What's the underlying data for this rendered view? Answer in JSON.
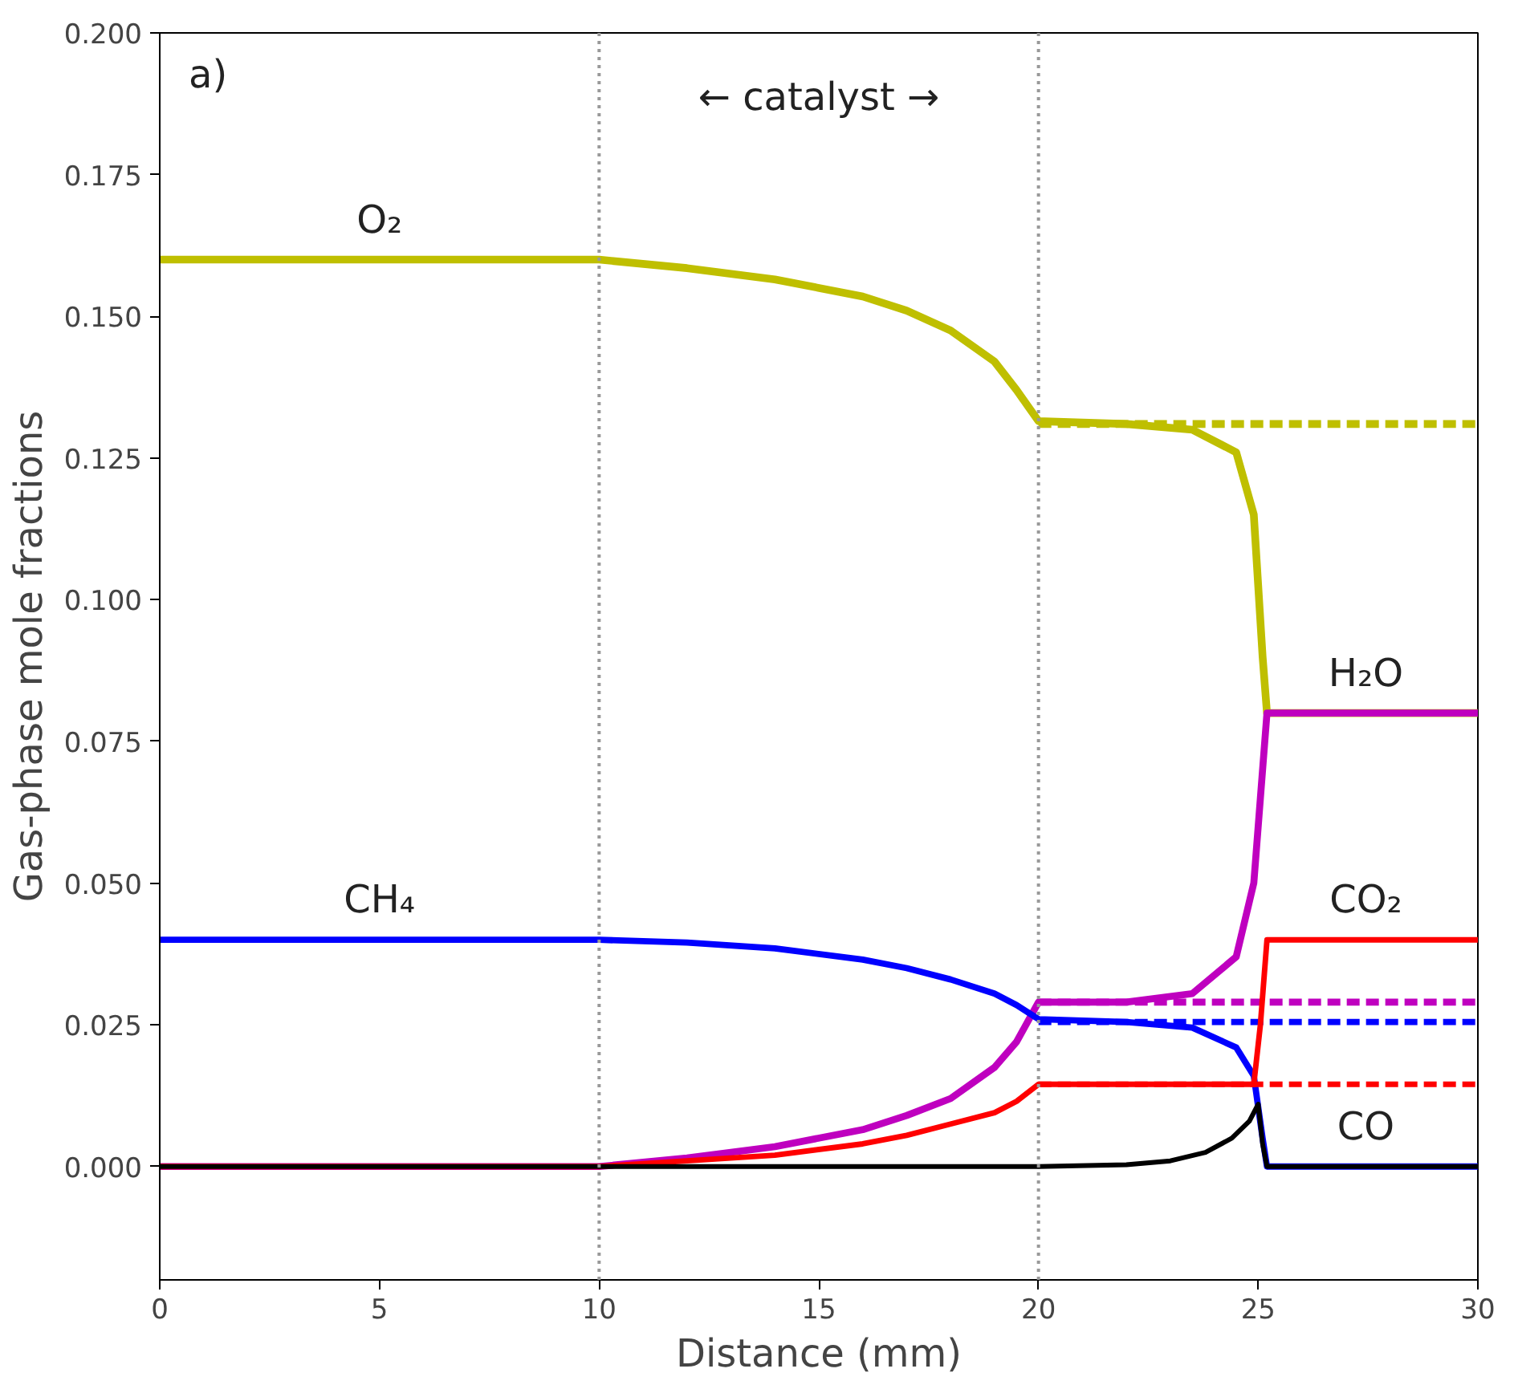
{
  "chart_data": {
    "type": "line",
    "xlabel": "Distance (mm)",
    "ylabel": "Gas-phase mole fractions",
    "xlim": [
      0,
      30
    ],
    "xticks": [
      0,
      5,
      10,
      15,
      20,
      25,
      30
    ],
    "ylim": [
      -0.02,
      0.2
    ],
    "yticks": [
      {
        "value": 0,
        "label": "0.000"
      },
      {
        "value": 0.025,
        "label": "0.025"
      },
      {
        "value": 0.05,
        "label": "0.050"
      },
      {
        "value": 0.075,
        "label": "0.075"
      },
      {
        "value": 0.1,
        "label": "0.100"
      },
      {
        "value": 0.125,
        "label": "0.125"
      },
      {
        "value": 0.15,
        "label": "0.150"
      },
      {
        "value": 0.175,
        "label": "0.175"
      },
      {
        "value": 0.2,
        "label": "0.200"
      }
    ],
    "grid": false,
    "legend": false,
    "marker": "none",
    "series": [
      {
        "name": "O₂",
        "color": "#bfbf00",
        "line_style": "solid",
        "x": [
          0,
          10,
          12,
          14,
          16,
          17,
          18,
          19,
          19.5,
          20,
          22,
          23.5,
          24.5,
          24.9,
          25.1,
          25.2,
          30
        ],
        "values": [
          0.16,
          0.16,
          0.1585,
          0.1565,
          0.1535,
          0.151,
          0.1475,
          0.142,
          0.137,
          0.1315,
          0.131,
          0.13,
          0.126,
          0.115,
          0.09,
          0.08,
          0.08
        ]
      },
      {
        "color": "#bfbf00",
        "line_style": "dashed",
        "x": [
          20,
          30
        ],
        "values": [
          0.131,
          0.131
        ]
      },
      {
        "name": "H₂O",
        "color": "#bf00bf",
        "line_style": "solid",
        "x": [
          0,
          10,
          12,
          14,
          16,
          17,
          18,
          19,
          19.5,
          20,
          22,
          23.5,
          24.5,
          24.9,
          25.05,
          25.2,
          30
        ],
        "values": [
          0,
          0,
          0.0015,
          0.0035,
          0.0065,
          0.009,
          0.012,
          0.0175,
          0.022,
          0.029,
          0.029,
          0.0305,
          0.037,
          0.05,
          0.065,
          0.08,
          0.08
        ]
      },
      {
        "color": "#bf00bf",
        "line_style": "dashed",
        "x": [
          20,
          30
        ],
        "values": [
          0.029,
          0.029
        ]
      },
      {
        "name": "CH₄",
        "color": "#0000ff",
        "line_style": "solid",
        "x": [
          0,
          10,
          12,
          14,
          16,
          17,
          18,
          19,
          19.5,
          20,
          22,
          23.5,
          24.5,
          24.9,
          25.1,
          25.2,
          30
        ],
        "values": [
          0.04,
          0.04,
          0.0395,
          0.0385,
          0.0365,
          0.035,
          0.033,
          0.0305,
          0.0285,
          0.026,
          0.0255,
          0.0245,
          0.021,
          0.016,
          0.005,
          0,
          0
        ]
      },
      {
        "color": "#0000ff",
        "line_style": "dashed",
        "x": [
          20,
          30
        ],
        "values": [
          0.0255,
          0.0255
        ]
      },
      {
        "name": "CO₂",
        "color": "#ff0000",
        "line_style": "solid",
        "x": [
          0,
          10,
          12,
          14,
          16,
          17,
          18,
          19,
          19.5,
          20,
          24.9,
          25.05,
          25.2,
          30
        ],
        "values": [
          0,
          0,
          0.001,
          0.002,
          0.004,
          0.0055,
          0.0075,
          0.0095,
          0.0115,
          0.0145,
          0.0145,
          0.025,
          0.04,
          0.04
        ]
      },
      {
        "color": "#ff0000",
        "line_style": "dashed",
        "x": [
          20,
          30
        ],
        "values": [
          0.0145,
          0.0145
        ]
      },
      {
        "name": "CO",
        "color": "#000000",
        "line_style": "solid",
        "x": [
          0,
          20,
          22,
          23,
          23.8,
          24.4,
          24.8,
          25.0,
          25.1,
          25.2,
          30
        ],
        "values": [
          0,
          0,
          0.0003,
          0.001,
          0.0025,
          0.005,
          0.008,
          0.011,
          0.004,
          0,
          0
        ]
      }
    ],
    "ref_lines": [
      {
        "axis": "x",
        "value": 10,
        "color": "#999999",
        "line_style": "dotted"
      },
      {
        "axis": "x",
        "value": 20,
        "color": "#999999",
        "line_style": "dotted"
      }
    ],
    "annotations": [
      "a)",
      "← catalyst →"
    ]
  }
}
